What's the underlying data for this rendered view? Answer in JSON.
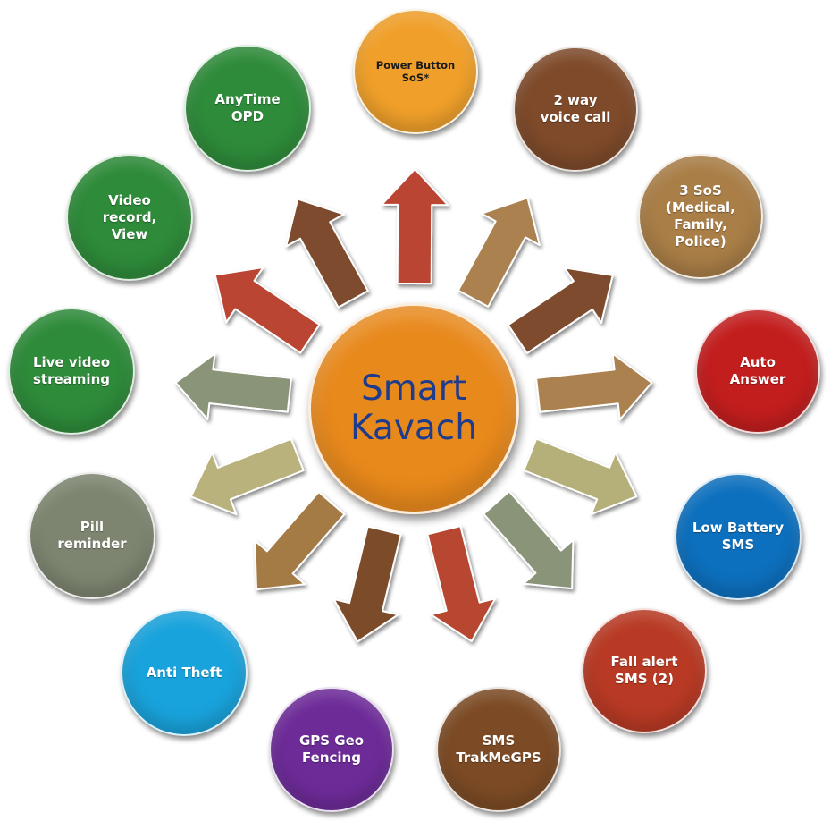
{
  "hub": {
    "label": "Smart\nKavach",
    "color": "#e8891c"
  },
  "features": [
    {
      "label": "Power Button\nSoS*",
      "color": "#f0a02a",
      "small": true
    },
    {
      "label": "2 way\nvoice call",
      "color": "#7e4a2a"
    },
    {
      "label": "3 SoS\n(Medical,\nFamily,\nPolice)",
      "color": "#a97e47"
    },
    {
      "label": "Auto\nAnswer",
      "color": "#c31e1e"
    },
    {
      "label": "Low Battery\nSMS",
      "color": "#0d70be"
    },
    {
      "label": "Fall alert\nSMS (2)",
      "color": "#b83a24"
    },
    {
      "label": "SMS\nTrakMeGPS",
      "color": "#7c4b25"
    },
    {
      "label": "GPS Geo\nFencing",
      "color": "#6d2b98"
    },
    {
      "label": "Anti Theft",
      "color": "#19a3dc"
    },
    {
      "label": "Pill\nreminder",
      "color": "#7d8570"
    },
    {
      "label": "Live video\nstreaming",
      "color": "#2e8b3a"
    },
    {
      "label": "Video\nrecord,\nView",
      "color": "#2e8b3a"
    },
    {
      "label": "AnyTime\nOPD",
      "color": "#2e8b3a"
    }
  ],
  "arrows": [
    {
      "color": "#b94530"
    },
    {
      "color": "#ab8150"
    },
    {
      "color": "#7f4c2d"
    },
    {
      "color": "#ab8150"
    },
    {
      "color": "#b5b07a"
    },
    {
      "color": "#8a9478"
    },
    {
      "color": "#b84630"
    },
    {
      "color": "#7c4b2b"
    },
    {
      "color": "#a47a45"
    },
    {
      "color": "#b9b27c"
    },
    {
      "color": "#8a9478"
    },
    {
      "color": "#b94530"
    },
    {
      "color": "#7f4c2d"
    }
  ]
}
